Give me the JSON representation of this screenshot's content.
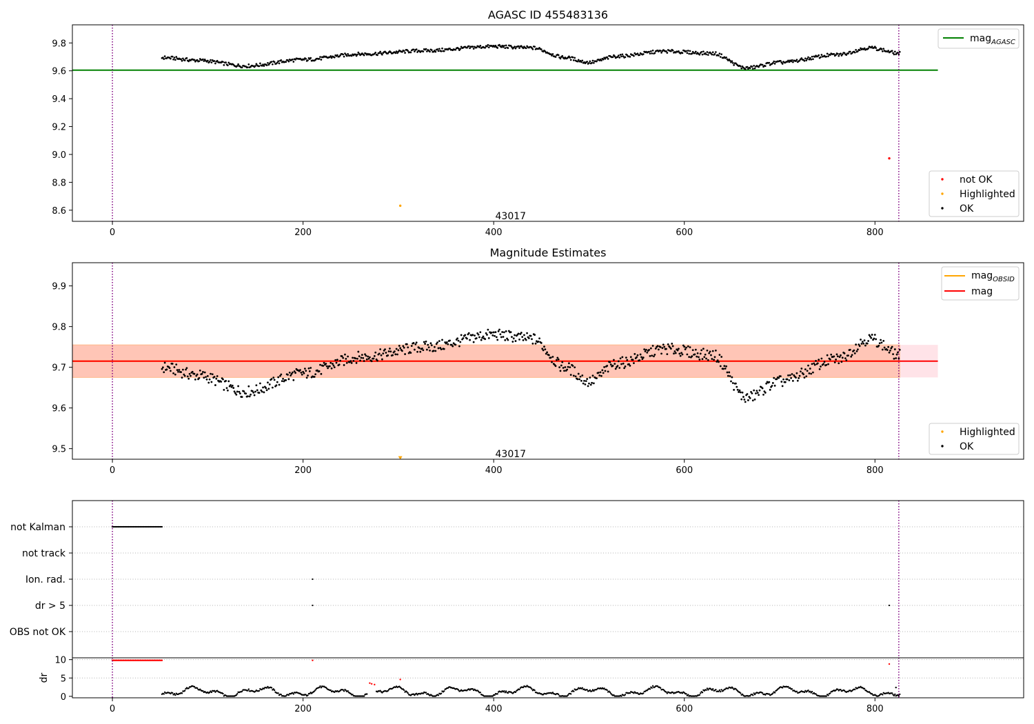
{
  "figure": {
    "background": "#ffffff"
  },
  "chart_data": [
    {
      "id": "agasc",
      "type": "scatter",
      "title": "AGASC ID 455483136",
      "xlim": [
        -42,
        956
      ],
      "ylim": [
        8.52,
        9.93
      ],
      "xticks": [
        0,
        200,
        400,
        600,
        800
      ],
      "yticks": [
        8.6,
        8.8,
        9.0,
        9.2,
        9.4,
        9.6,
        9.8
      ],
      "ytick_labels": [
        "8.6",
        "8.8",
        "9.0",
        "9.2",
        "9.4",
        "9.6",
        "9.8"
      ],
      "vlines": [
        0,
        825
      ],
      "vline_color": "#800080",
      "obsid_label": {
        "text": "43017",
        "x": 412,
        "y": 8.55
      },
      "hlines": [
        {
          "y": 9.605,
          "x": [
            -42,
            866
          ],
          "color": "#008000"
        }
      ],
      "ok_series": {
        "x_start": 52,
        "x_end": 826,
        "step": 1,
        "color": "#000000"
      },
      "points_not_ok": [
        {
          "x": 815,
          "y": 8.972
        }
      ],
      "points_highlighted": [
        {
          "x": 302,
          "y": 8.632
        }
      ],
      "legend_lines": [
        {
          "label": "mag",
          "sub": "AGASC",
          "color": "#008000"
        }
      ],
      "legend_points": [
        {
          "label": "not OK",
          "color": "#ff0000"
        },
        {
          "label": "Highlighted",
          "color": "#ffa500"
        },
        {
          "label": "OK",
          "color": "#000000"
        }
      ]
    },
    {
      "id": "estimates",
      "type": "scatter",
      "title": "Magnitude Estimates",
      "xlim": [
        -42,
        956
      ],
      "ylim": [
        9.474,
        9.957
      ],
      "xticks": [
        0,
        200,
        400,
        600,
        800
      ],
      "yticks": [
        9.5,
        9.6,
        9.7,
        9.8,
        9.9
      ],
      "ytick_labels": [
        "9.5",
        "9.6",
        "9.7",
        "9.8",
        "9.9"
      ],
      "vlines": [
        0,
        825
      ],
      "vline_color": "#800080",
      "obsid_label": {
        "text": "43017",
        "x": 412,
        "y": 9.484
      },
      "band_mag": {
        "x": [
          -42,
          866
        ],
        "y": [
          9.675,
          9.755
        ],
        "color": "#ffc0cb"
      },
      "band_obsid": {
        "x": [
          -42,
          826
        ],
        "y": [
          9.675,
          9.755
        ],
        "color": "#ffa07a"
      },
      "hlines": [
        {
          "y": 9.715,
          "x": [
            -42,
            826
          ],
          "color": "#ffa500"
        },
        {
          "y": 9.715,
          "x": [
            -42,
            866
          ],
          "color": "#ff0000"
        }
      ],
      "ok_series": {
        "x_start": 52,
        "x_end": 826,
        "step": 1,
        "color": "#000000"
      },
      "points_highlighted": [
        {
          "x": 302,
          "y": 9.478
        }
      ],
      "legend_lines": [
        {
          "label": "mag",
          "sub": "OBSID",
          "color": "#ffa500"
        },
        {
          "label": "mag",
          "sub": "",
          "color": "#ff0000"
        }
      ],
      "legend_points": [
        {
          "label": "Highlighted",
          "color": "#ffa500"
        },
        {
          "label": "OK",
          "color": "#000000"
        }
      ]
    },
    {
      "id": "flags",
      "type": "scatter",
      "xlim": [
        -42,
        956
      ],
      "vlines": [
        0,
        825
      ],
      "vline_color": "#800080",
      "rows": [
        "not Kalman",
        "not track",
        "Ion. rad.",
        "dr > 5",
        "OBS not OK"
      ],
      "flag_points": [
        {
          "row": 0,
          "x_start": 0,
          "x_end": 52,
          "step": 1
        },
        {
          "row": 2,
          "x_start": 210,
          "x_end": 210,
          "step": 1
        },
        {
          "row": 3,
          "x_start": 210,
          "x_end": 210,
          "step": 1
        },
        {
          "row": 3,
          "x_start": 815,
          "x_end": 815,
          "step": 1
        }
      ]
    },
    {
      "id": "dr",
      "type": "scatter",
      "ylabel": "dr",
      "xlim": [
        -42,
        956
      ],
      "ylim": [
        -0.4,
        10.5
      ],
      "xticks": [
        0,
        200,
        400,
        600,
        800
      ],
      "yticks": [
        0,
        5,
        10
      ],
      "ytick_labels": [
        "0",
        "5",
        "10"
      ],
      "vlines": [
        0,
        825
      ],
      "vline_color": "#800080",
      "dr_red_runs": [
        {
          "x_start": 0,
          "x_end": 52,
          "y": 9.8
        }
      ],
      "dr_red_points": [
        {
          "x": 210,
          "y": 9.8
        },
        {
          "x": 270,
          "y": 3.6
        },
        {
          "x": 272,
          "y": 3.4
        },
        {
          "x": 275,
          "y": 3.2
        },
        {
          "x": 302,
          "y": 4.6
        },
        {
          "x": 815,
          "y": 8.8
        }
      ],
      "dr_black_points": [
        {
          "x": 822,
          "y": 2.4
        }
      ],
      "dr_series": {
        "x_start": 52,
        "x_end": 826,
        "step": 1,
        "color": "#000000"
      }
    }
  ]
}
